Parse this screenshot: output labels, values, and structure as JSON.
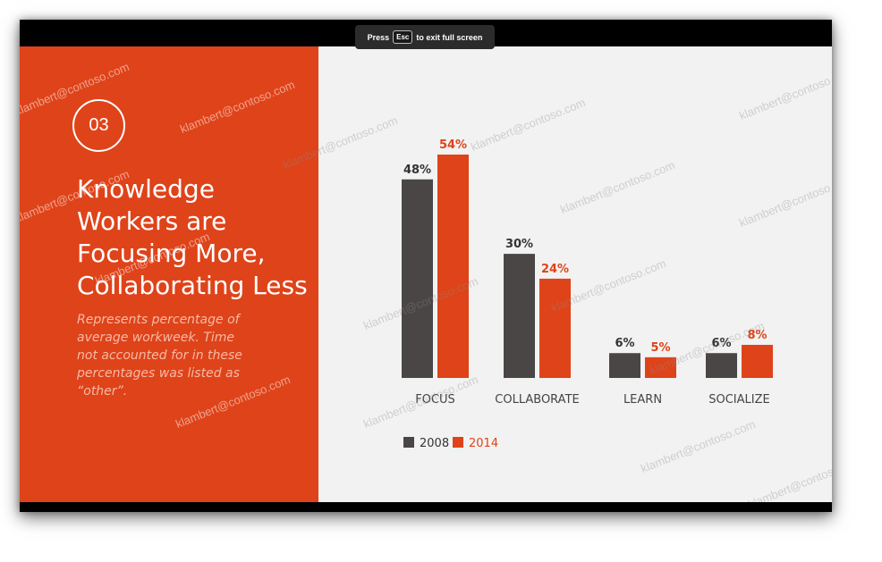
{
  "fullscreen_banner": {
    "press": "Press",
    "key": "Esc",
    "message": "to exit full screen"
  },
  "slide": {
    "number": "03",
    "title_lines": [
      "Knowledge",
      "Workers are",
      "Focusing More,",
      "Collaborating Less"
    ],
    "subtitle_lines": [
      "Represents percentage of",
      "average workweek. Time",
      "not accounted for in these",
      "percentages was listed as",
      "“other”."
    ]
  },
  "watermark": "klambert@contoso.com",
  "toolbar": {
    "items": [
      {
        "name": "previous-slide-button",
        "icon": "chevron-left-icon",
        "glyph": "‹"
      },
      {
        "name": "next-slide-button",
        "icon": "chevron-right-icon",
        "glyph": "›"
      },
      {
        "name": "all-slides-button",
        "icon": "slides-icon",
        "glyph": "❐"
      },
      {
        "name": "pen-button",
        "icon": "pen-icon",
        "glyph": "✎"
      },
      {
        "name": "camera-button",
        "icon": "camera-icon",
        "glyph": "■"
      },
      {
        "name": "presenter-view-button",
        "icon": "presenter-icon",
        "glyph": "▭"
      },
      {
        "name": "more-options-button",
        "icon": "more-icon",
        "glyph": "…"
      }
    ]
  },
  "colors": {
    "accent": "#df4319",
    "series_2008": "#4a4646",
    "series_2014": "#df4319"
  },
  "chart_data": {
    "type": "bar",
    "categories": [
      "FOCUS",
      "COLLABORATE",
      "LEARN",
      "SOCIALIZE"
    ],
    "series": [
      {
        "name": "2008",
        "values": [
          48,
          30,
          6,
          6
        ],
        "labels": [
          "48%",
          "30%",
          "6%",
          "6%"
        ]
      },
      {
        "name": "2014",
        "values": [
          54,
          24,
          5,
          8
        ],
        "labels": [
          "54%",
          "24%",
          "5%",
          "8%"
        ]
      }
    ],
    "ylim": [
      0,
      54
    ],
    "legend": "bottom-left"
  }
}
